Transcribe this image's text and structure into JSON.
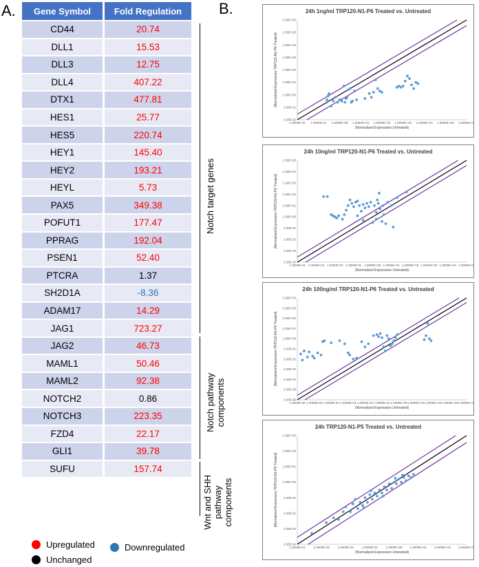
{
  "panel_a_label": "A.",
  "panel_b_label": "B.",
  "table": {
    "headers": [
      "Gene Symbol",
      "Fold Regulation"
    ],
    "rows": [
      {
        "gene": "CD44",
        "fold": "20.74",
        "status": "up"
      },
      {
        "gene": "DLL1",
        "fold": "15.53",
        "status": "up"
      },
      {
        "gene": "DLL3",
        "fold": "12.75",
        "status": "up"
      },
      {
        "gene": "DLL4",
        "fold": "407.22",
        "status": "up"
      },
      {
        "gene": "DTX1",
        "fold": "477.81",
        "status": "up"
      },
      {
        "gene": "HES1",
        "fold": "25.77",
        "status": "up"
      },
      {
        "gene": "HES5",
        "fold": "220.74",
        "status": "up"
      },
      {
        "gene": "HEY1",
        "fold": "145.40",
        "status": "up"
      },
      {
        "gene": "HEY2",
        "fold": "193.21",
        "status": "up"
      },
      {
        "gene": "HEYL",
        "fold": "5.73",
        "status": "up"
      },
      {
        "gene": "PAX5",
        "fold": "349.38",
        "status": "up"
      },
      {
        "gene": "POFUT1",
        "fold": "177.47",
        "status": "up"
      },
      {
        "gene": "PPRAG",
        "fold": "192.04",
        "status": "up"
      },
      {
        "gene": "PSEN1",
        "fold": "52.40",
        "status": "up"
      },
      {
        "gene": "PTCRA",
        "fold": "1.37",
        "status": "unchanged"
      },
      {
        "gene": "SH2D1A",
        "fold": "-8.36",
        "status": "down"
      },
      {
        "gene": "ADAM17",
        "fold": "14.29",
        "status": "up"
      },
      {
        "gene": "JAG1",
        "fold": "723.27",
        "status": "up"
      },
      {
        "gene": "JAG2",
        "fold": "46.73",
        "status": "up"
      },
      {
        "gene": "MAML1",
        "fold": "50.46",
        "status": "up"
      },
      {
        "gene": "MAML2",
        "fold": "92.38",
        "status": "up"
      },
      {
        "gene": "NOTCH2",
        "fold": "0.86",
        "status": "unchanged"
      },
      {
        "gene": "NOTCH3",
        "fold": "223.35",
        "status": "up"
      },
      {
        "gene": "FZD4",
        "fold": "22.17",
        "status": "up"
      },
      {
        "gene": "GLI1",
        "fold": "39.78",
        "status": "up"
      },
      {
        "gene": "SUFU",
        "fold": "157.74",
        "status": "up"
      }
    ]
  },
  "groups": [
    {
      "label": "Notch target genes",
      "lines": [
        "Notch target genes"
      ]
    },
    {
      "label": "Notch pathway components",
      "lines": [
        "Notch pathway",
        "components"
      ]
    },
    {
      "label": "Wnt and SHH pathway components",
      "lines": [
        "Wnt and SHH",
        "pathway",
        "components"
      ]
    }
  ],
  "legend": {
    "up": "Upregulated",
    "down": "Downregulated",
    "unchanged": "Unchanged",
    "colors": {
      "up": "#ff0000",
      "down": "#2e75b6",
      "unchanged": "#000000"
    }
  },
  "chart_data": [
    {
      "type": "scatter",
      "title": "24h 1ng/ml TRP120-N1-P6 Treated vs. Untreated",
      "xlabel": "(Normalized Expression Untreated)",
      "ylabel": "(Normalized Expression TRP120-N1-P6 Treated)",
      "log_scale": true,
      "x_ticks": [
        "1.0000E-02",
        "1.0000E-01",
        "1.0000E+00",
        "1.0000E+01",
        "1.0000E+02",
        "1.0000E+03",
        "1.0000E+04",
        "1.0000E+05",
        "1.0000E+06"
      ],
      "y_ticks": [
        "1.00E-02",
        "1.00E-01",
        "1.00E+00",
        "1.00E+01",
        "1.00E+02",
        "1.00E+03",
        "1.00E+04",
        "1.00E+05",
        "1.00E+06"
      ],
      "xlim_exp": [
        -2,
        6
      ],
      "ylim_exp": [
        -2,
        6
      ],
      "points": [
        [
          -0.6,
          -0.6
        ],
        [
          -0.6,
          -0.4
        ],
        [
          -0.55,
          -0.1
        ],
        [
          -0.5,
          0.1
        ],
        [
          -0.4,
          -0.9
        ],
        [
          -0.3,
          -0.5
        ],
        [
          -0.2,
          -0.2
        ],
        [
          -0.1,
          -0.6
        ],
        [
          0,
          -0.4
        ],
        [
          0.1,
          -0.5
        ],
        [
          0.2,
          0.7
        ],
        [
          0.25,
          -0.6
        ],
        [
          0.3,
          -0.3
        ],
        [
          0.35,
          -0.2
        ],
        [
          0.4,
          0.4
        ],
        [
          0.5,
          0.5
        ],
        [
          0.55,
          -0.6
        ],
        [
          0.6,
          -0.5
        ],
        [
          0.7,
          0.3
        ],
        [
          0.8,
          -0.4
        ],
        [
          1.2,
          -0.3
        ],
        [
          1.4,
          0.1
        ],
        [
          1.5,
          -0.2
        ],
        [
          1.6,
          0.2
        ],
        [
          1.7,
          1.2
        ],
        [
          1.8,
          0.5
        ],
        [
          1.9,
          0.3
        ],
        [
          2.0,
          0.2
        ],
        [
          2.7,
          0.6
        ],
        [
          2.8,
          0.7
        ],
        [
          2.9,
          0.6
        ],
        [
          3.0,
          0.7
        ],
        [
          3.1,
          1.1
        ],
        [
          3.2,
          1.5
        ],
        [
          3.3,
          1.3
        ],
        [
          3.4,
          0.8
        ],
        [
          3.5,
          0.5
        ],
        [
          3.6,
          1.0
        ],
        [
          3.7,
          0.9
        ]
      ]
    },
    {
      "type": "scatter",
      "title": "24h 10ng/ml TRP120-N1-P6 Treated vs. Untreated",
      "xlabel": "(Normalized Expression Untreated)",
      "ylabel": "(Normalized Expression TRP120-N1-P6 Treated)",
      "log_scale": true,
      "x_ticks": [
        "1.0000E-04",
        "1.0000E-03",
        "1.0000E-02",
        "1.0000E-01",
        "1.0000E+00",
        "1.0000E+01",
        "1.0000E+02",
        "1.0000E+03",
        "1.0000E+04",
        "1.0000E+05"
      ],
      "y_ticks": [
        "1.00E-04",
        "1.00E-03",
        "1.00E-02",
        "1.00E-01",
        "1.00E+00",
        "1.00E+01",
        "1.00E+02",
        "1.00E+03",
        "1.00E+04",
        "1.00E+05"
      ],
      "xlim_exp": [
        -4,
        5
      ],
      "ylim_exp": [
        -4,
        5
      ],
      "points": [
        [
          -2.6,
          1.8
        ],
        [
          -2.4,
          1.8
        ],
        [
          -2.2,
          0.2
        ],
        [
          -2.1,
          0.1
        ],
        [
          -2,
          0
        ],
        [
          -1.9,
          -0.1
        ],
        [
          -1.8,
          0.1
        ],
        [
          -1.6,
          -0.2
        ],
        [
          -1.5,
          0.2
        ],
        [
          -1.3,
          1.0
        ],
        [
          -1.2,
          1.5
        ],
        [
          -1.1,
          1.2
        ],
        [
          -1.0,
          0.9
        ],
        [
          -0.9,
          1.3
        ],
        [
          -0.8,
          1.4
        ],
        [
          -0.7,
          1.0
        ],
        [
          -0.6,
          0.5
        ],
        [
          -0.5,
          1.1
        ],
        [
          -0.4,
          0.8
        ],
        [
          -0.3,
          1.2
        ],
        [
          -0.2,
          0.9
        ],
        [
          -0.1,
          1.3
        ],
        [
          0,
          -0.5
        ],
        [
          0.1,
          1.0
        ],
        [
          0.2,
          0.4
        ],
        [
          0.25,
          1.5
        ],
        [
          0.3,
          1.2
        ],
        [
          0.35,
          2.1
        ],
        [
          0.4,
          0.7
        ],
        [
          0.5,
          -0.4
        ],
        [
          0.55,
          1.0
        ],
        [
          0.6,
          0.2
        ],
        [
          0.7,
          -0.6
        ],
        [
          0.8,
          1.3
        ],
        [
          1.0,
          1.0
        ],
        [
          1.1,
          -0.9
        ],
        [
          1.3,
          1.7
        ],
        [
          -0.5,
          -0.3
        ],
        [
          -0.8,
          0.1
        ],
        [
          0.2,
          -0.2
        ],
        [
          -1.4,
          0.6
        ],
        [
          1.8,
          2.2
        ]
      ]
    },
    {
      "type": "scatter",
      "title": "24h 100ng/ml TRP120-N1-P6 Treated vs. Untreated",
      "xlabel": "(Normalized Expression Untreated)",
      "ylabel": "(Normalized Expression TRP120-N1-P6 Treated)",
      "log_scale": true,
      "x_ticks": [
        "1.0000E-06",
        "1.0000E-05",
        "1.0000E-04",
        "1.0000E-03",
        "1.0000E-02",
        "1.0000E-01",
        "1.0000E+00",
        "1.0000E+01",
        "1.0000E+02",
        "1.0000E+03",
        "1.0000E+04"
      ],
      "y_ticks": [
        "1.00E-06",
        "1.00E-05",
        "1.00E-04",
        "1.00E-03",
        "1.00E-02",
        "1.00E-01",
        "1.00E+00",
        "1.00E+01",
        "1.00E+02",
        "1.00E+03",
        "1.00E+04"
      ],
      "xlim_exp": [
        -6,
        4
      ],
      "ylim_exp": [
        -6,
        4
      ],
      "points": [
        [
          -5.8,
          -1.5
        ],
        [
          -5.7,
          -2.1
        ],
        [
          -5.6,
          -1.2
        ],
        [
          -5.4,
          -1.8
        ],
        [
          -5.3,
          -1.3
        ],
        [
          -5.1,
          -1.7
        ],
        [
          -5.0,
          -1.9
        ],
        [
          -4.8,
          -1.4
        ],
        [
          -4.6,
          -1.6
        ],
        [
          -4.5,
          -0.3
        ],
        [
          -4.4,
          -0.2
        ],
        [
          -4.0,
          -0.4
        ],
        [
          -3.5,
          -0.2
        ],
        [
          -3.2,
          -0.5
        ],
        [
          -3.0,
          -1.4
        ],
        [
          -2.9,
          -1.6
        ],
        [
          -2.7,
          -2.0
        ],
        [
          -2.5,
          -1.9
        ],
        [
          -2.2,
          -0.3
        ],
        [
          -2.0,
          -0.8
        ],
        [
          -1.8,
          -0.5
        ],
        [
          -1.5,
          0.3
        ],
        [
          -1.3,
          0.4
        ],
        [
          -1.2,
          0.2
        ],
        [
          -1.1,
          0.5
        ],
        [
          -1.0,
          0.1
        ],
        [
          -0.9,
          -0.8
        ],
        [
          -0.8,
          -1.2
        ],
        [
          -0.7,
          0.3
        ],
        [
          -0.6,
          0.0
        ],
        [
          -0.5,
          -0.7
        ],
        [
          -0.4,
          -0.5
        ],
        [
          -0.3,
          -0.2
        ],
        [
          -0.2,
          0.1
        ],
        [
          -0.1,
          0.4
        ],
        [
          1.5,
          -0.1
        ],
        [
          1.6,
          0.3
        ],
        [
          1.7,
          1.5
        ],
        [
          1.8,
          0.0
        ],
        [
          1.9,
          -0.2
        ]
      ]
    },
    {
      "type": "scatter",
      "title": "24h TRP120-N1-P5 Treated vs. Untreated",
      "xlabel": "(Normalized Expression Untreated)",
      "ylabel": "(Normalized Expression TRP120-N1-P5 Treated)",
      "log_scale": true,
      "x_ticks": [
        "1.0000E-04",
        "1.0000E-03",
        "1.0000E-02",
        "1.0000E-01",
        "1.0000E+00",
        "1.0000E+01",
        "1.0000E+02",
        "1.0000E+03"
      ],
      "y_ticks": [
        "1.00E-04",
        "1.00E-03",
        "1.00E-02",
        "1.00E-01",
        "1.00E+00",
        "1.00E+01",
        "1.00E+02",
        "1.00E+03"
      ],
      "xlim_exp": [
        -4,
        3
      ],
      "ylim_exp": [
        -4,
        3
      ],
      "points": [
        [
          -3.4,
          -3.3
        ],
        [
          -2.8,
          -2.6
        ],
        [
          -2.5,
          -2.3
        ],
        [
          -2.3,
          -2.4
        ],
        [
          -2.1,
          -1.9
        ],
        [
          -2.0,
          -1.6
        ],
        [
          -1.8,
          -1.9
        ],
        [
          -1.7,
          -1.4
        ],
        [
          -1.5,
          -1.7
        ],
        [
          -1.4,
          -1.3
        ],
        [
          -1.3,
          -1.5
        ],
        [
          -1.2,
          -1.0
        ],
        [
          -1.1,
          -1.3
        ],
        [
          -1.0,
          -0.8
        ],
        [
          -0.9,
          -1.1
        ],
        [
          -0.8,
          -0.7
        ],
        [
          -0.7,
          -0.9
        ],
        [
          -0.6,
          -0.5
        ],
        [
          -0.5,
          -0.7
        ],
        [
          -0.4,
          -0.3
        ],
        [
          -0.3,
          -0.5
        ],
        [
          -0.2,
          -0.1
        ],
        [
          -0.1,
          -0.4
        ],
        [
          0,
          0.0
        ],
        [
          0.1,
          -0.1
        ],
        [
          0.2,
          0.2
        ],
        [
          0.3,
          0.0
        ],
        [
          0.4,
          0.3
        ],
        [
          0.5,
          0.1
        ],
        [
          0.6,
          0.4
        ],
        [
          0.7,
          0.3
        ],
        [
          0.8,
          0.5
        ],
        [
          -1.6,
          -1.1
        ],
        [
          -0.95,
          -0.55
        ],
        [
          -0.45,
          -0.9
        ],
        [
          0.05,
          0.25
        ],
        [
          -1.25,
          -1.65
        ],
        [
          0.35,
          0.45
        ]
      ]
    }
  ]
}
